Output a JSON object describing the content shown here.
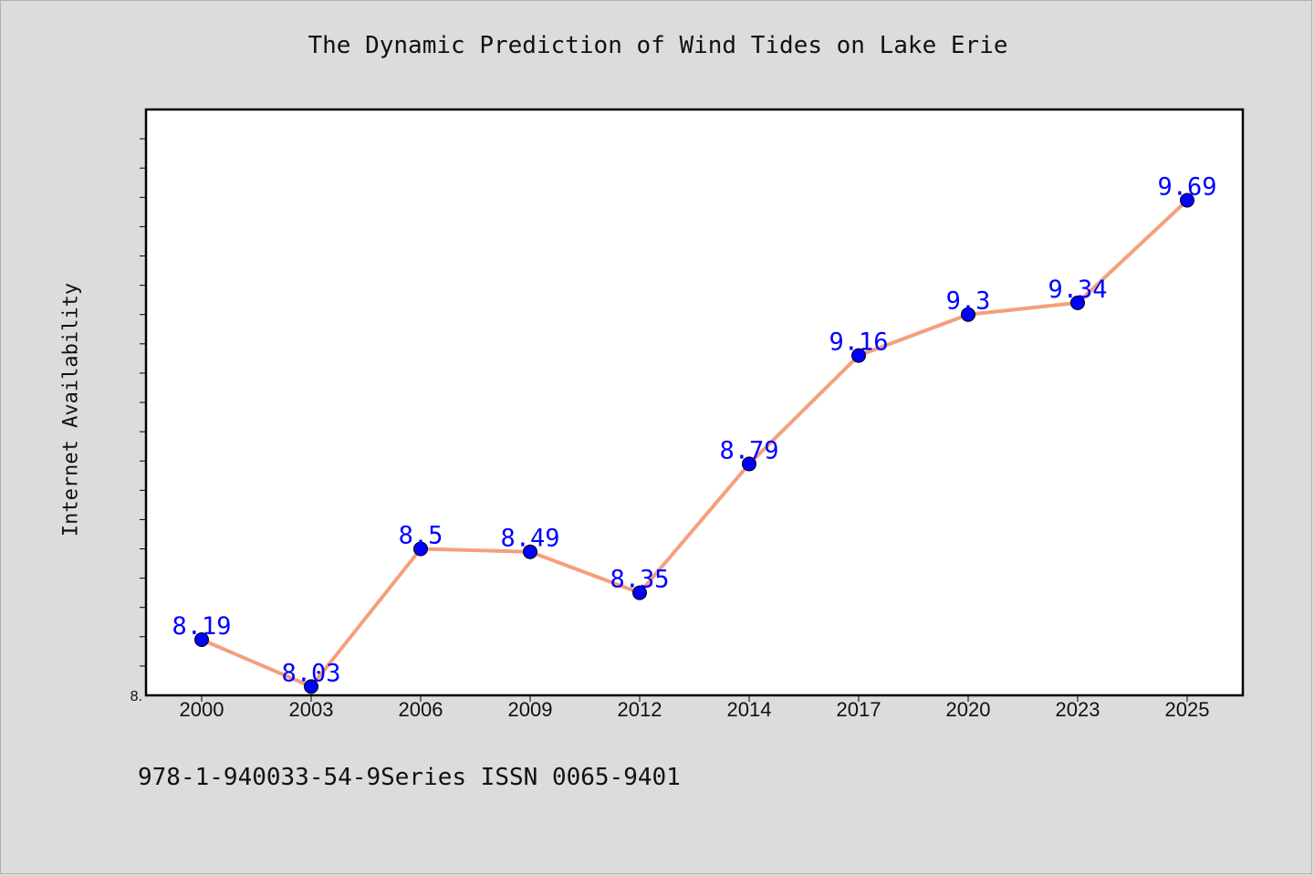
{
  "chart_data": {
    "type": "line",
    "title": "The Dynamic Prediction of Wind Tides on Lake Erie",
    "xlabel": "",
    "ylabel": "Internet Availability",
    "categories": [
      "2000",
      "2003",
      "2006",
      "2009",
      "2012",
      "2014",
      "2017",
      "2020",
      "2023",
      "2025"
    ],
    "series": [
      {
        "values": [
          8.19,
          8.03,
          8.5,
          8.49,
          8.35,
          8.79,
          9.16,
          9.3,
          9.34,
          9.69
        ],
        "data_labels": [
          "8.19",
          "8.03",
          "8.5",
          "8.49",
          "8.35",
          "8.79",
          "9.16",
          "9.3",
          "9.34",
          "9.69"
        ]
      }
    ],
    "ylim": [
      8.0,
      10.0
    ],
    "y_tick_labels": [
      "8."
    ],
    "grid": false,
    "line_color": "#f4a07c",
    "marker_color": "#0000ff",
    "label_color": "#0000ff"
  },
  "footer": "978-1-940033-54-9Series ISSN 0065-9401"
}
